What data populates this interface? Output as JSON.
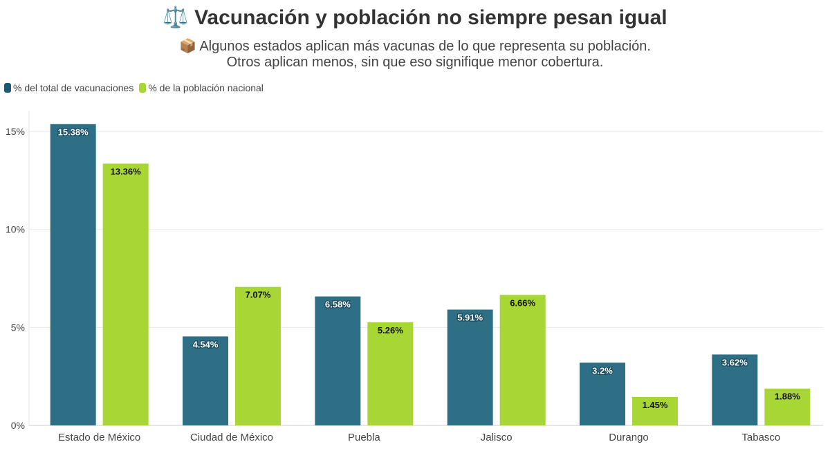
{
  "title": "⚖️ Vacunación y población no siempre pesan igual",
  "subtitle_line1": "📦 Algunos estados aplican más vacunas de lo que representa su población.",
  "subtitle_line2": "Otros aplican menos, sin que eso signifique menor cobertura.",
  "chart_data": {
    "type": "bar",
    "categories": [
      "Estado de México",
      "Ciudad de México",
      "Puebla",
      "Jalisco",
      "Durango",
      "Tabasco"
    ],
    "series": [
      {
        "name": "% del total de vacunaciones",
        "values": [
          15.38,
          4.54,
          6.58,
          5.91,
          3.2,
          3.62
        ],
        "labels": [
          "15.38%",
          "4.54%",
          "6.58%",
          "5.91%",
          "3.2%",
          "3.62%"
        ],
        "color": "#2f6f86"
      },
      {
        "name": "% de la población nacional",
        "values": [
          13.36,
          7.07,
          5.26,
          6.66,
          1.45,
          1.88
        ],
        "labels": [
          "13.36%",
          "7.07%",
          "5.26%",
          "6.66%",
          "1.45%",
          "1.88%"
        ],
        "color": "#a8d635"
      }
    ],
    "yticks": [
      "0%",
      "5%",
      "10%",
      "15%"
    ],
    "ylim": [
      0,
      16
    ],
    "grid": true,
    "legend": "top-left"
  }
}
